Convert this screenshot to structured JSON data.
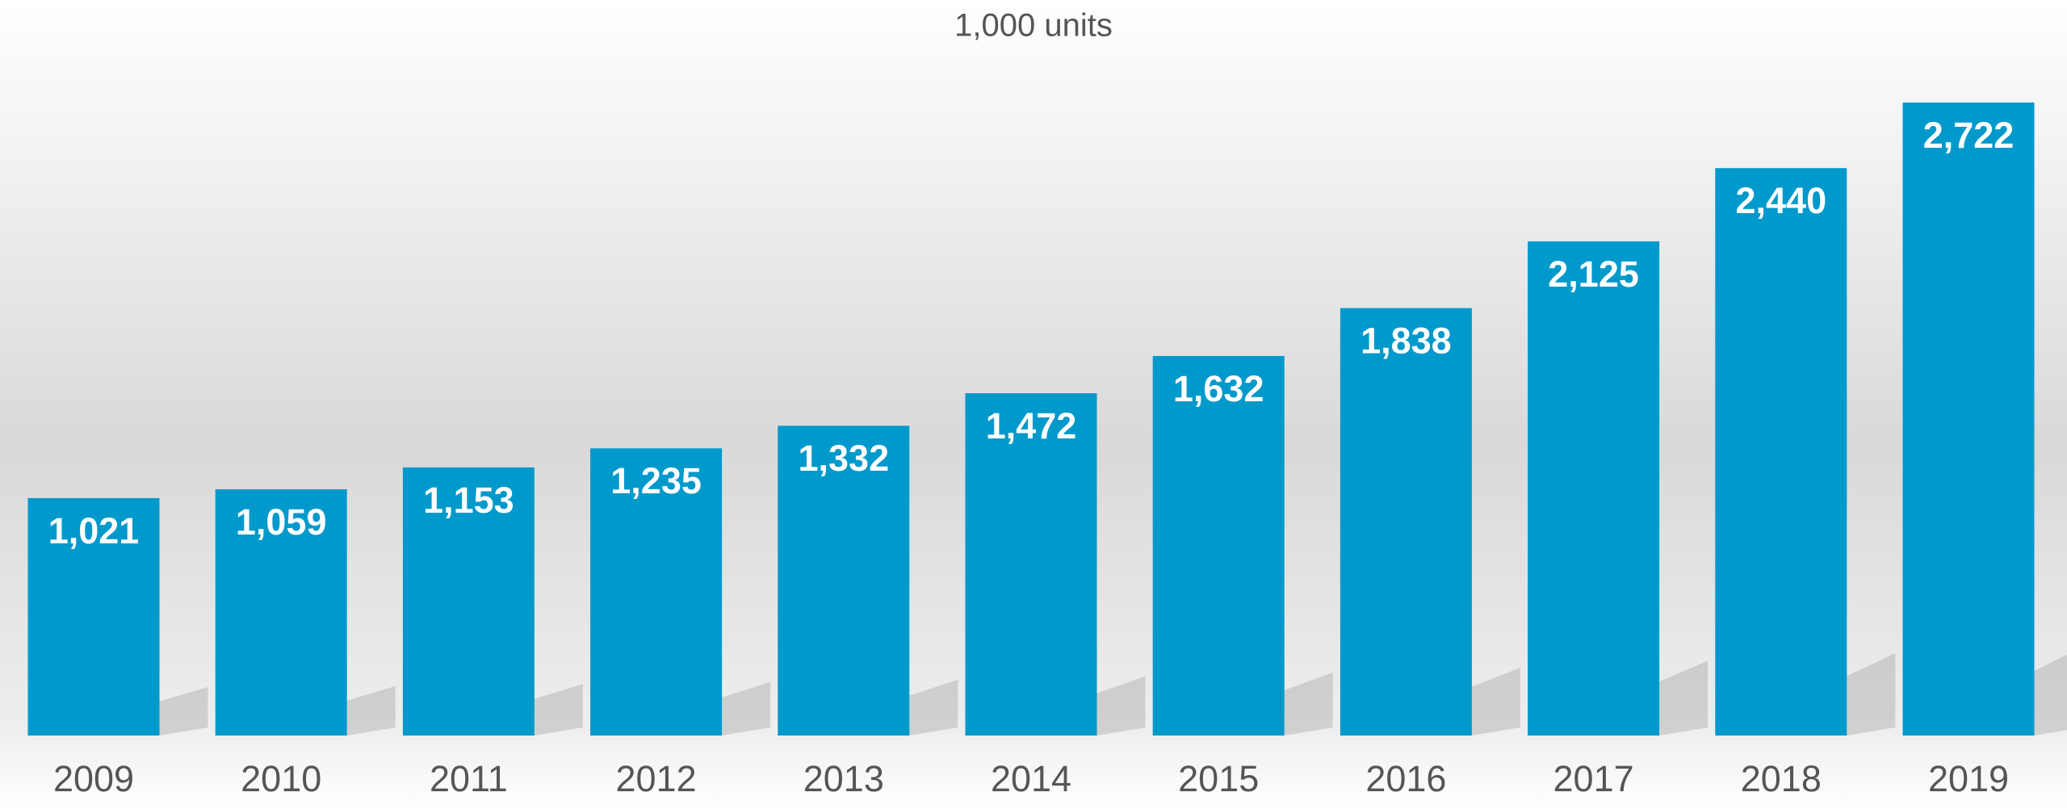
{
  "chart_data": {
    "type": "bar",
    "subtitle": "1,000 units",
    "categories": [
      "2009",
      "2010",
      "2011",
      "2012",
      "2013",
      "2014",
      "2015",
      "2016",
      "2017",
      "2018",
      "2019"
    ],
    "values": [
      1021,
      1059,
      1153,
      1235,
      1332,
      1472,
      1632,
      1838,
      2125,
      2440,
      2722
    ],
    "value_labels": [
      "1,021",
      "1,059",
      "1,153",
      "1,235",
      "1,332",
      "1,472",
      "1,632",
      "1,838",
      "2,125",
      "2,440",
      "2,722"
    ],
    "color": "#0099cc"
  }
}
